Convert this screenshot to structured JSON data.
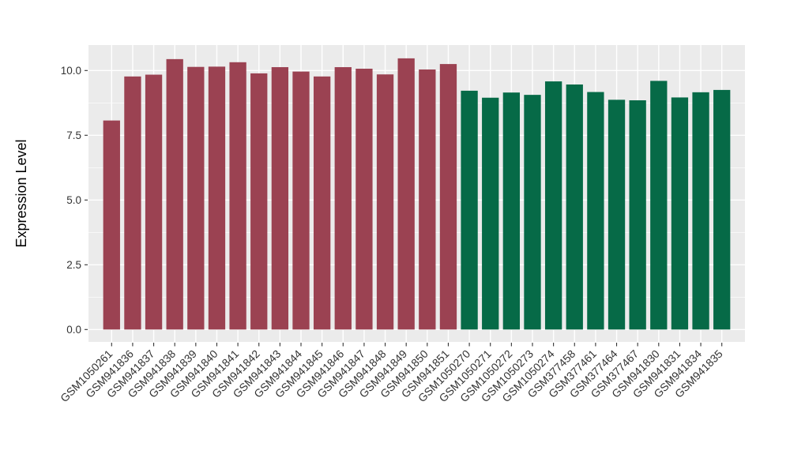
{
  "chart_data": {
    "type": "bar",
    "title": "",
    "xlabel": "",
    "ylabel": "Expression Level",
    "ylim": [
      0,
      10.99
    ],
    "yticks": [
      0.0,
      2.5,
      5.0,
      7.5,
      10.0
    ],
    "grid": "on",
    "legend": "none",
    "categories": [
      "GSM1050261",
      "GSM941836",
      "GSM941837",
      "GSM941838",
      "GSM941839",
      "GSM941840",
      "GSM941841",
      "GSM941842",
      "GSM941843",
      "GSM941844",
      "GSM941845",
      "GSM941846",
      "GSM941847",
      "GSM941848",
      "GSM941849",
      "GSM941850",
      "GSM941851",
      "GSM1050270",
      "GSM1050271",
      "GSM1050272",
      "GSM1050273",
      "GSM1050274",
      "GSM377458",
      "GSM377461",
      "GSM377464",
      "GSM377467",
      "GSM941830",
      "GSM941831",
      "GSM941834",
      "GSM941835"
    ],
    "values": [
      8.07,
      9.77,
      9.84,
      10.44,
      10.14,
      10.15,
      10.32,
      9.89,
      10.13,
      9.96,
      9.77,
      10.13,
      10.07,
      9.85,
      10.47,
      10.04,
      10.25,
      9.22,
      8.95,
      9.15,
      9.06,
      9.58,
      9.46,
      9.17,
      8.87,
      8.85,
      9.6,
      8.96,
      9.16,
      9.25
    ],
    "colors": [
      "#9B4252",
      "#9B4252",
      "#9B4252",
      "#9B4252",
      "#9B4252",
      "#9B4252",
      "#9B4252",
      "#9B4252",
      "#9B4252",
      "#9B4252",
      "#9B4252",
      "#9B4252",
      "#9B4252",
      "#9B4252",
      "#9B4252",
      "#9B4252",
      "#9B4252",
      "#066A47",
      "#066A47",
      "#066A47",
      "#066A47",
      "#066A47",
      "#066A47",
      "#066A47",
      "#066A47",
      "#066A47",
      "#066A47",
      "#066A47",
      "#066A47",
      "#066A47"
    ],
    "style": {
      "panel_background": "#EBEBEB",
      "grid_color": "#FFFFFF",
      "axis_text_color": "#333333",
      "axis_title_color": "#000000",
      "tick_mark_color": "#333333",
      "group1_color": "#9B4252",
      "group2_color": "#066A47"
    }
  }
}
